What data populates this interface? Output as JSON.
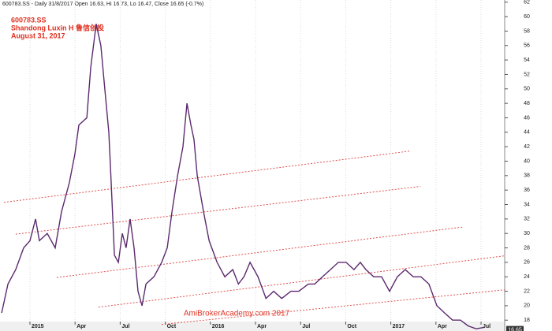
{
  "chart_data": {
    "type": "line",
    "header": "600783.SS - Daily 31/8/2017 Open 16.63, Hi 16.73, Lo 16.47, Close 16.65 (-0.7%)",
    "title": "600783.SS",
    "subtitle": "Shandong Luxin H 鲁信创投",
    "date_text": "August 31, 2017",
    "watermark": "AmiBrokerAcademy.com  2017",
    "last_value": 16.65,
    "grid": true,
    "xlim": [
      2014.834,
      2017.631
    ],
    "xticks": [
      {
        "value": 2015.0,
        "label": "2015"
      },
      {
        "value": 2015.25,
        "label": "Apr"
      },
      {
        "value": 2015.5,
        "label": "Jul"
      },
      {
        "value": 2015.75,
        "label": "Oct"
      },
      {
        "value": 2016.0,
        "label": "2016"
      },
      {
        "value": 2016.25,
        "label": "Apr"
      },
      {
        "value": 2016.5,
        "label": "Jul"
      },
      {
        "value": 2016.75,
        "label": "Oct"
      },
      {
        "value": 2017.0,
        "label": "2017"
      },
      {
        "value": 2017.25,
        "label": "Apr"
      },
      {
        "value": 2017.5,
        "label": "Jul"
      }
    ],
    "ylim": [
      16.5,
      62.3
    ],
    "yticks": [
      18,
      20,
      22,
      24,
      26,
      28,
      30,
      32,
      34,
      36,
      38,
      40,
      42,
      44,
      46,
      48,
      50,
      52,
      54,
      56,
      58,
      60,
      62
    ],
    "series": [
      {
        "color": "#5b2a6e",
        "x": [
          2014.843,
          2014.878,
          2014.921,
          2014.965,
          2015.0,
          2015.031,
          2015.052,
          2015.096,
          2015.14,
          2015.175,
          2015.218,
          2015.249,
          2015.271,
          2015.315,
          2015.337,
          2015.367,
          2015.393,
          2015.415,
          2015.437,
          2015.45,
          2015.468,
          2015.49,
          2015.512,
          2015.533,
          2015.555,
          2015.577,
          2015.599,
          2015.621,
          2015.643,
          2015.687,
          2015.73,
          2015.761,
          2015.787,
          2015.818,
          2015.848,
          2015.87,
          2015.892,
          2015.909,
          2015.927,
          2015.962,
          2015.993,
          2016.037,
          2016.08,
          2016.124,
          2016.155,
          2016.186,
          2016.22,
          2016.264,
          2016.308,
          2016.351,
          2016.395,
          2016.446,
          2016.49,
          2016.543,
          2016.578,
          2016.621,
          2016.665,
          2016.709,
          2016.752,
          2016.796,
          2016.831,
          2016.862,
          2016.905,
          2016.949,
          2016.993,
          2017.036,
          2017.08,
          2017.124,
          2017.167,
          2017.211,
          2017.255,
          2017.298,
          2017.342,
          2017.386,
          2017.429,
          2017.473,
          2017.517
        ],
        "values": [
          19,
          23,
          25,
          28,
          29,
          32,
          29,
          30,
          28,
          33,
          37,
          41,
          45,
          46,
          53,
          59,
          56,
          50,
          44,
          37,
          27,
          26,
          30,
          28,
          32,
          28,
          22,
          20,
          23,
          24,
          26,
          28,
          33,
          38,
          42,
          48,
          45,
          43,
          38,
          33,
          29,
          26,
          24,
          25,
          23,
          24,
          26,
          24,
          21,
          22,
          21,
          22,
          22,
          23,
          23,
          24,
          25,
          26,
          26,
          25,
          26,
          25,
          24,
          24,
          22,
          24,
          25,
          24,
          24,
          23,
          20,
          19,
          18,
          18,
          17.2,
          16.8,
          17
        ]
      }
    ],
    "trend_lines": [
      {
        "x": [
          2014.856,
          2017.107
        ],
        "values": [
          34.3,
          41.4
        ]
      },
      {
        "x": [
          2014.921,
          2017.164
        ],
        "values": [
          29.9,
          36.5
        ]
      },
      {
        "x": [
          2015.149,
          2017.404
        ],
        "values": [
          23.9,
          30.9
        ]
      },
      {
        "x": [
          2015.38,
          2017.631
        ],
        "values": [
          19.8,
          26.9
        ]
      },
      {
        "x": [
          2015.73,
          2017.631
        ],
        "values": [
          17.4,
          22.2
        ]
      }
    ],
    "trend_color": "#e05050"
  }
}
